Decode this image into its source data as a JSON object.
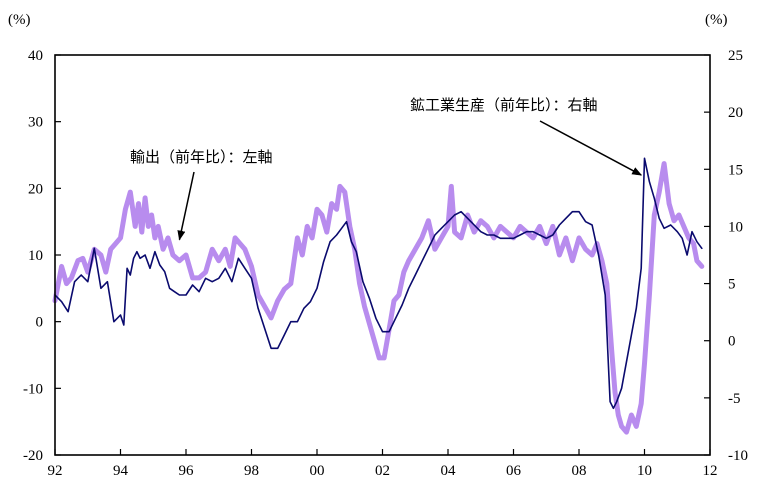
{
  "chart_data": {
    "type": "line",
    "title": "",
    "xlabel": "",
    "ylabel_left_unit": "(%)",
    "ylabel_right_unit": "(%)",
    "xlim": [
      1992,
      2012
    ],
    "ylim_left": [
      -20,
      40
    ],
    "ylim_right": [
      -10,
      25
    ],
    "x_ticks": [
      1992,
      1994,
      1996,
      1998,
      2000,
      2002,
      2004,
      2006,
      2008,
      2010,
      2012
    ],
    "x_tick_labels": [
      "92",
      "94",
      "96",
      "98",
      "00",
      "02",
      "04",
      "06",
      "08",
      "10",
      "12"
    ],
    "y_left_ticks": [
      40,
      30,
      20,
      10,
      0,
      -10,
      -20
    ],
    "y_left_tick_labels": [
      "40",
      "30",
      "20",
      "10",
      "0",
      "-10",
      "-20"
    ],
    "y_right_ticks": [
      25,
      20,
      15,
      10,
      5,
      0,
      -5,
      -10
    ],
    "y_right_tick_labels": [
      "25",
      "20",
      "15",
      "10",
      "5",
      "0",
      "-5",
      "-10"
    ],
    "grid": false,
    "legend": "none",
    "annotations": [
      {
        "text": "輸出（前年比）：左軸",
        "target_x": 1995.8,
        "target_y_left": 12.3
      },
      {
        "text": "鉱工業生産（前年比）：右軸",
        "target_x": 2009.9,
        "target_y_right": 14.5
      }
    ],
    "series": [
      {
        "axis": "right",
        "color": "#b88cee",
        "stroke_width": 5,
        "x": [
          1992.0,
          1992.2,
          1992.35,
          1992.5,
          1992.7,
          1992.85,
          1993.0,
          1993.2,
          1993.4,
          1993.55,
          1993.7,
          1993.85,
          1994.0,
          1994.15,
          1994.3,
          1994.45,
          1994.55,
          1994.65,
          1994.75,
          1994.85,
          1994.95,
          1995.05,
          1995.15,
          1995.3,
          1995.45,
          1995.6,
          1995.8,
          1996.0,
          1996.2,
          1996.4,
          1996.6,
          1996.8,
          1997.0,
          1997.2,
          1997.35,
          1997.5,
          1997.65,
          1997.8,
          1998.0,
          1998.2,
          1998.4,
          1998.6,
          1998.8,
          1999.0,
          1999.2,
          1999.4,
          1999.55,
          1999.7,
          1999.85,
          2000.0,
          2000.15,
          2000.3,
          2000.45,
          2000.6,
          2000.7,
          2000.85,
          2001.0,
          2001.15,
          2001.3,
          2001.45,
          2001.6,
          2001.75,
          2001.9,
          2002.05,
          2002.2,
          2002.35,
          2002.5,
          2002.65,
          2002.8,
          2003.0,
          2003.2,
          2003.4,
          2003.6,
          2003.8,
          2004.0,
          2004.1,
          2004.2,
          2004.4,
          2004.6,
          2004.8,
          2005.0,
          2005.2,
          2005.4,
          2005.6,
          2005.8,
          2006.0,
          2006.2,
          2006.4,
          2006.6,
          2006.8,
          2007.0,
          2007.2,
          2007.4,
          2007.6,
          2007.8,
          2008.0,
          2008.2,
          2008.4,
          2008.55,
          2008.7,
          2008.85,
          2009.0,
          2009.1,
          2009.2,
          2009.3,
          2009.45,
          2009.6,
          2009.75,
          2009.9,
          2010.0,
          2010.15,
          2010.3,
          2010.45,
          2010.6,
          2010.75,
          2010.9,
          2011.05,
          2011.2,
          2011.35,
          2011.5,
          2011.6,
          2011.75
        ],
        "values": [
          3.5,
          6.5,
          5.0,
          5.5,
          7.0,
          7.2,
          6.0,
          8.0,
          7.5,
          6.0,
          8.0,
          8.5,
          9.0,
          11.5,
          13.0,
          10.0,
          12.0,
          9.5,
          12.5,
          10.0,
          11.0,
          9.0,
          10.0,
          8.0,
          9.0,
          7.5,
          7.0,
          7.5,
          5.5,
          5.5,
          6.0,
          8.0,
          7.0,
          8.0,
          6.5,
          9.0,
          8.5,
          8.0,
          6.5,
          4.0,
          3.0,
          2.0,
          3.5,
          4.5,
          5.0,
          9.0,
          7.5,
          10.0,
          9.0,
          11.5,
          11.0,
          9.5,
          12.0,
          11.5,
          13.5,
          13.0,
          10.0,
          8.0,
          5.0,
          3.0,
          1.5,
          0.0,
          -1.5,
          -1.5,
          1.0,
          3.5,
          4.0,
          6.0,
          7.0,
          8.0,
          9.0,
          10.5,
          8.0,
          9.0,
          10.0,
          13.5,
          9.5,
          9.0,
          11.0,
          9.5,
          10.5,
          10.0,
          9.0,
          10.0,
          9.5,
          9.0,
          10.0,
          9.5,
          9.0,
          10.0,
          8.5,
          10.0,
          7.5,
          9.0,
          7.0,
          9.0,
          8.0,
          7.5,
          8.5,
          7.0,
          5.0,
          -1.0,
          -4.5,
          -6.5,
          -7.5,
          -8.0,
          -6.5,
          -7.5,
          -5.5,
          -2.0,
          4.0,
          11.0,
          13.0,
          15.5,
          12.0,
          10.5,
          11.0,
          10.0,
          9.0,
          8.5,
          7.0,
          6.5
        ]
      },
      {
        "axis": "left",
        "color": "#0a0a6e",
        "stroke_width": 1.6,
        "x": [
          1992.0,
          1992.2,
          1992.4,
          1992.6,
          1992.8,
          1993.0,
          1993.2,
          1993.4,
          1993.6,
          1993.8,
          1994.0,
          1994.1,
          1994.2,
          1994.3,
          1994.4,
          1994.5,
          1994.6,
          1994.75,
          1994.9,
          1995.05,
          1995.2,
          1995.35,
          1995.5,
          1995.65,
          1995.8,
          1996.0,
          1996.2,
          1996.4,
          1996.6,
          1996.8,
          1997.0,
          1997.2,
          1997.4,
          1997.6,
          1997.8,
          1998.0,
          1998.2,
          1998.4,
          1998.6,
          1998.8,
          1999.0,
          1999.2,
          1999.4,
          1999.6,
          1999.8,
          2000.0,
          2000.2,
          2000.4,
          2000.6,
          2000.75,
          2000.9,
          2001.05,
          2001.2,
          2001.4,
          2001.6,
          2001.8,
          2002.0,
          2002.2,
          2002.4,
          2002.6,
          2002.8,
          2003.0,
          2003.2,
          2003.4,
          2003.6,
          2003.8,
          2004.0,
          2004.2,
          2004.4,
          2004.6,
          2004.8,
          2005.0,
          2005.2,
          2005.4,
          2005.6,
          2005.8,
          2006.0,
          2006.2,
          2006.4,
          2006.6,
          2006.8,
          2007.0,
          2007.2,
          2007.4,
          2007.6,
          2007.8,
          2008.0,
          2008.2,
          2008.4,
          2008.6,
          2008.8,
          2008.95,
          2009.05,
          2009.15,
          2009.3,
          2009.45,
          2009.6,
          2009.75,
          2009.9,
          2010.0,
          2010.15,
          2010.3,
          2010.45,
          2010.6,
          2010.8,
          2011.0,
          2011.15,
          2011.3,
          2011.45,
          2011.6,
          2011.75
        ],
        "values": [
          4.0,
          3.0,
          1.5,
          6.0,
          7.0,
          6.0,
          11.0,
          5.0,
          6.0,
          0.0,
          1.0,
          -0.5,
          8.0,
          7.0,
          9.5,
          10.5,
          9.5,
          10.0,
          8.0,
          10.5,
          8.5,
          7.5,
          5.0,
          4.5,
          4.0,
          4.0,
          5.5,
          4.5,
          6.5,
          6.0,
          6.5,
          8.0,
          6.0,
          9.5,
          8.0,
          6.5,
          2.0,
          -1.0,
          -4.0,
          -4.0,
          -2.0,
          0.0,
          0.0,
          2.0,
          3.0,
          5.0,
          9.0,
          12.0,
          13.0,
          14.0,
          15.0,
          12.0,
          10.5,
          6.0,
          3.5,
          0.5,
          -1.5,
          -1.5,
          0.5,
          2.5,
          5.0,
          7.0,
          9.0,
          11.0,
          13.0,
          14.0,
          15.0,
          16.0,
          16.5,
          15.5,
          14.5,
          13.5,
          13.0,
          13.0,
          12.5,
          12.5,
          12.5,
          13.0,
          13.5,
          13.5,
          13.0,
          12.5,
          13.0,
          14.5,
          15.5,
          16.5,
          16.5,
          15.0,
          14.5,
          10.0,
          4.0,
          -12.0,
          -13.0,
          -12.0,
          -10.0,
          -6.0,
          -2.0,
          2.0,
          8.0,
          24.5,
          21.0,
          18.5,
          15.5,
          14.0,
          14.5,
          13.5,
          12.5,
          10.0,
          13.5,
          12.0,
          11.0
        ]
      }
    ]
  }
}
